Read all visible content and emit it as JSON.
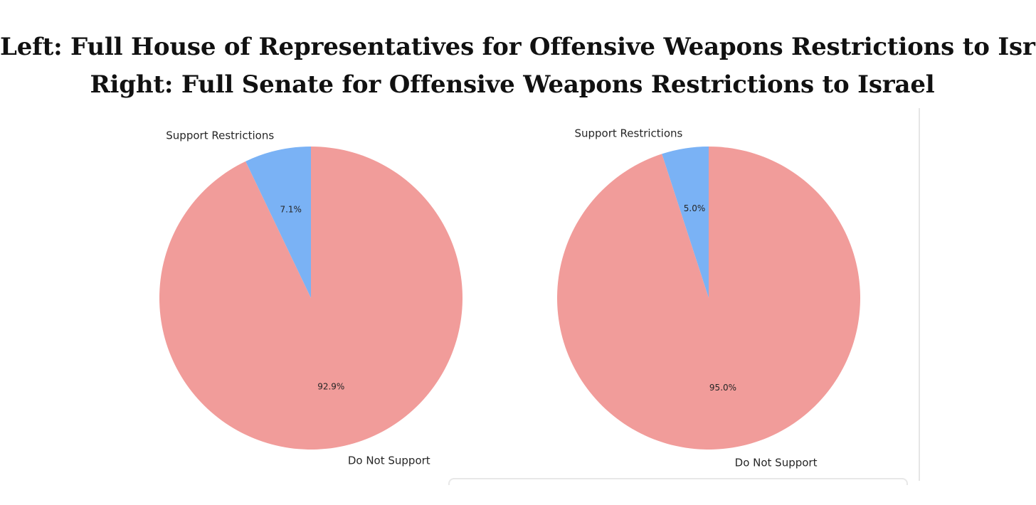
{
  "title": {
    "line1": "Left: Full House of Representatives for Offensive Weapons Restrictions to Israel",
    "line2": "Right: Full Senate for Offensive Weapons Restrictions to Israel"
  },
  "colors": {
    "support": "#7ab2f5",
    "not_support": "#f19c9a"
  },
  "chart_data": [
    {
      "type": "pie",
      "title": "Full House of Representatives",
      "slices": [
        {
          "label": "Support Restrictions",
          "value": 7.1,
          "pct_label": "7.1%",
          "color": "#7ab2f5"
        },
        {
          "label": "Do Not Support",
          "value": 92.9,
          "pct_label": "92.9%",
          "color": "#f19c9a"
        }
      ]
    },
    {
      "type": "pie",
      "title": "Full Senate",
      "slices": [
        {
          "label": "Support Restrictions",
          "value": 5.0,
          "pct_label": "5.0%",
          "color": "#7ab2f5"
        },
        {
          "label": "Do Not Support",
          "value": 95.0,
          "pct_label": "95.0%",
          "color": "#f19c9a"
        }
      ]
    }
  ]
}
